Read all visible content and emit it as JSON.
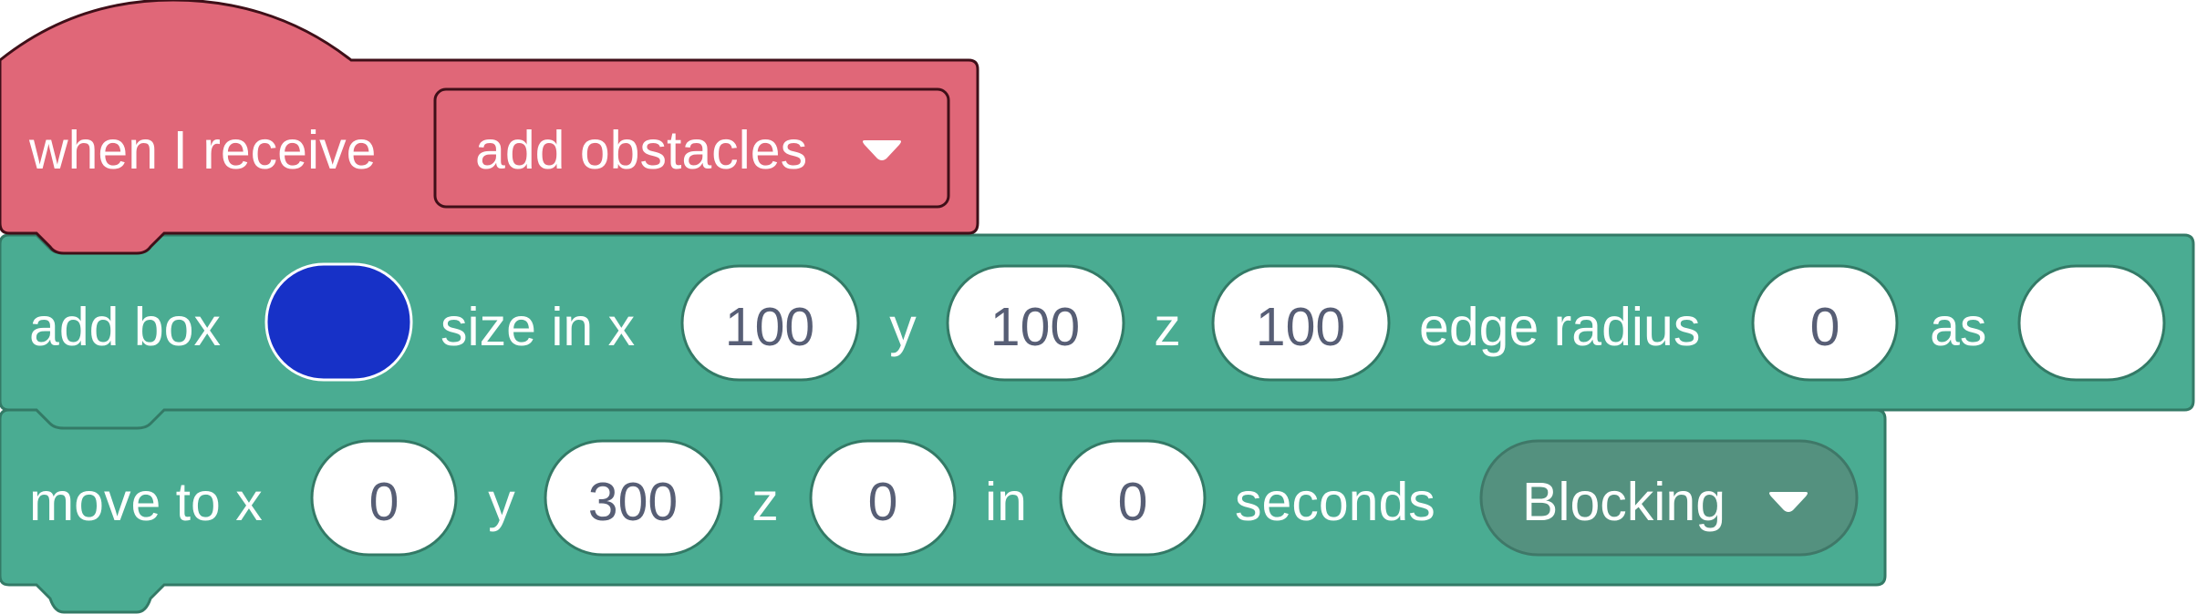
{
  "hat_block": {
    "label": "when I receive",
    "message": "add obstacles",
    "color": "#e06778",
    "border": "#3f0f18"
  },
  "add_box_block": {
    "label_add": "add box",
    "color_input_value": "#1731c7",
    "label_size": "size in x",
    "size_x": "100",
    "label_y": "y",
    "size_y": "100",
    "label_z": "z",
    "size_z": "100",
    "label_edge": "edge radius",
    "edge_radius": "0",
    "label_as": "as",
    "as_value": "",
    "color": "#4aac92",
    "border": "#337a66"
  },
  "move_block": {
    "label_move": "move to x",
    "x": "0",
    "label_y": "y",
    "y": "300",
    "label_z": "z",
    "z": "0",
    "label_in": "in",
    "seconds": "0",
    "label_seconds": "seconds",
    "mode": "Blocking",
    "mode_color": "#54917f"
  }
}
